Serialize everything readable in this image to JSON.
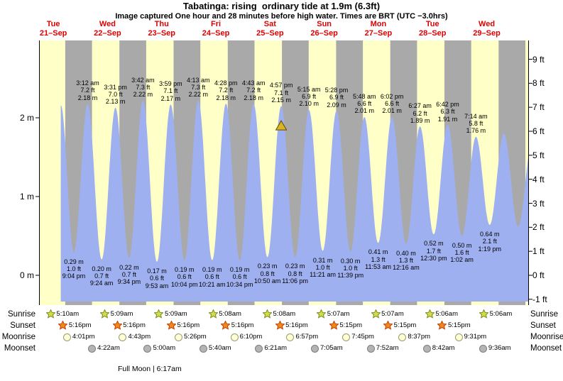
{
  "title": "Tabatinga: rising  ordinary tide at 1.9m (6.3ft)",
  "subtitle": "Image captured One hour and 28 minutes before high water. Times are BRT (UTC −3.0hrs)",
  "days": [
    {
      "weekday": "Tue",
      "date": "21–Sep"
    },
    {
      "weekday": "Wed",
      "date": "22–Sep"
    },
    {
      "weekday": "Thu",
      "date": "23–Sep"
    },
    {
      "weekday": "Fri",
      "date": "24–Sep"
    },
    {
      "weekday": "Sat",
      "date": "25–Sep"
    },
    {
      "weekday": "Sun",
      "date": "26–Sep"
    },
    {
      "weekday": "Mon",
      "date": "27–Sep"
    },
    {
      "weekday": "Tue",
      "date": "28–Sep"
    },
    {
      "weekday": "Wed",
      "date": "29–Sep"
    }
  ],
  "axis": {
    "left_labels": [
      "2 m",
      "1 m",
      "0 m"
    ],
    "right_labels": [
      "9 ft",
      "8 ft",
      "7 ft",
      "6 ft",
      "5 ft",
      "4 ft",
      "3 ft",
      "2 ft",
      "1 ft",
      "0 ft",
      "-1 ft"
    ]
  },
  "chart_data": {
    "type": "area",
    "series_name": "Tide height",
    "x_axis": "Time (BRT), Tue 21-Sep through Wed 29-Sep",
    "y_axis_left": "meters",
    "y_axis_right": "feet",
    "ylim_m": [
      -0.38,
      2.98
    ],
    "current_level_m": 1.9,
    "extremes": [
      {
        "kind": "high",
        "t": 15.3,
        "height_m": 2.16
      },
      {
        "kind": "low",
        "day": 0,
        "time": "9:04 pm",
        "height_m": 0.29,
        "m": "0.29 m",
        "ft": "1.0 ft"
      },
      {
        "kind": "high",
        "day": 1,
        "time": "3:12 am",
        "height_m": 2.18,
        "ft": "7.2 ft",
        "m": "2.18 m"
      },
      {
        "kind": "low",
        "day": 1,
        "time": "9:24 am",
        "height_m": 0.2,
        "m": "0.20 m",
        "ft": "0.7 ft"
      },
      {
        "kind": "high",
        "day": 1,
        "time": "3:31 pm",
        "height_m": 2.13,
        "ft": "7.0 ft",
        "m": "2.13 m"
      },
      {
        "kind": "low",
        "day": 1,
        "time": "9:34 pm",
        "height_m": 0.22,
        "m": "0.22 m",
        "ft": "0.7 ft"
      },
      {
        "kind": "high",
        "day": 2,
        "time": "3:42 am",
        "height_m": 2.22,
        "ft": "7.3 ft",
        "m": "2.22 m"
      },
      {
        "kind": "low",
        "day": 2,
        "time": "9:53 am",
        "height_m": 0.17,
        "m": "0.17 m",
        "ft": "0.6 ft"
      },
      {
        "kind": "high",
        "day": 2,
        "time": "3:59 pm",
        "height_m": 2.17,
        "ft": "7.1 ft",
        "m": "2.17 m"
      },
      {
        "kind": "low",
        "day": 2,
        "time": "10:04 pm",
        "height_m": 0.19,
        "m": "0.19 m",
        "ft": "0.6 ft"
      },
      {
        "kind": "high",
        "day": 3,
        "time": "4:13 am",
        "height_m": 2.22,
        "ft": "7.3 ft",
        "m": "2.22 m"
      },
      {
        "kind": "low",
        "day": 3,
        "time": "10:21 am",
        "height_m": 0.19,
        "m": "0.19 m",
        "ft": "0.6 ft"
      },
      {
        "kind": "high",
        "day": 3,
        "time": "4:28 pm",
        "height_m": 2.18,
        "ft": "7.2 ft",
        "m": "2.18 m"
      },
      {
        "kind": "low",
        "day": 3,
        "time": "10:34 pm",
        "height_m": 0.19,
        "m": "0.19 m",
        "ft": "0.6 ft"
      },
      {
        "kind": "high",
        "day": 4,
        "time": "4:43 am",
        "height_m": 2.18,
        "ft": "7.2 ft",
        "m": "2.18 m"
      },
      {
        "kind": "low",
        "day": 4,
        "time": "10:50 am",
        "height_m": 0.23,
        "m": "0.23 m",
        "ft": "0.8 ft"
      },
      {
        "kind": "high",
        "day": 4,
        "time": "4:57 pm",
        "height_m": 2.15,
        "ft": "7.1 ft",
        "m": "2.15 m",
        "marker": true
      },
      {
        "kind": "low",
        "day": 4,
        "time": "11:06 pm",
        "height_m": 0.23,
        "m": "0.23 m",
        "ft": "0.8 ft"
      },
      {
        "kind": "high",
        "day": 5,
        "time": "5:15 am",
        "height_m": 2.1,
        "ft": "6.9 ft",
        "m": "2.10 m"
      },
      {
        "kind": "low",
        "day": 5,
        "time": "11:21 am",
        "height_m": 0.31,
        "m": "0.31 m",
        "ft": "1.0 ft"
      },
      {
        "kind": "high",
        "day": 5,
        "time": "5:28 pm",
        "height_m": 2.09,
        "ft": "6.9 ft",
        "m": "2.09 m"
      },
      {
        "kind": "low",
        "day": 5,
        "time": "11:39 pm",
        "height_m": 0.3,
        "m": "0.30 m",
        "ft": "1.0 ft"
      },
      {
        "kind": "high",
        "day": 6,
        "time": "5:48 am",
        "height_m": 2.01,
        "ft": "6.6 ft",
        "m": "2.01 m"
      },
      {
        "kind": "low",
        "day": 6,
        "time": "11:53 am",
        "height_m": 0.41,
        "m": "0.41 m",
        "ft": "1.3 ft"
      },
      {
        "kind": "high",
        "day": 6,
        "time": "6:02 pm",
        "height_m": 2.01,
        "ft": "6.6 ft",
        "m": "2.01 m"
      },
      {
        "kind": "low",
        "day": 7,
        "time": "12:16 am",
        "height_m": 0.4,
        "m": "0.40 m",
        "ft": "1.3 ft"
      },
      {
        "kind": "high",
        "day": 7,
        "time": "6:27 am",
        "height_m": 1.89,
        "ft": "6.2 ft",
        "m": "1.89 m"
      },
      {
        "kind": "low",
        "day": 7,
        "time": "12:30 pm",
        "height_m": 0.52,
        "m": "0.52 m",
        "ft": "1.7 ft"
      },
      {
        "kind": "high",
        "day": 7,
        "time": "6:42 pm",
        "height_m": 1.91,
        "ft": "6.3 ft",
        "m": "1.91 m"
      },
      {
        "kind": "low",
        "day": 8,
        "time": "1:02 am",
        "height_m": 0.5,
        "m": "0.50 m",
        "ft": "1.6 ft"
      },
      {
        "kind": "high",
        "day": 8,
        "time": "7:14 am",
        "height_m": 1.76,
        "ft": "5.8 ft",
        "m": "1.76 m"
      },
      {
        "kind": "low",
        "day": 8,
        "time": "1:19 pm",
        "height_m": 0.64,
        "m": "0.64 m",
        "ft": "2.1 ft"
      },
      {
        "kind": "high",
        "t": 211.6,
        "height_m": 1.8
      },
      {
        "kind": "low",
        "t": 217.9,
        "height_m": 0.62
      },
      {
        "kind": "high",
        "t": 224.2,
        "height_m": 1.7
      }
    ]
  },
  "astro": {
    "rows": [
      {
        "name": "Sunrise",
        "icon": "sunrise-star-icon",
        "events": [
          {
            "day": 0,
            "time": "5:10am"
          },
          {
            "day": 1,
            "time": "5:09am"
          },
          {
            "day": 2,
            "time": "5:09am"
          },
          {
            "day": 3,
            "time": "5:08am"
          },
          {
            "day": 4,
            "time": "5:08am"
          },
          {
            "day": 5,
            "time": "5:07am"
          },
          {
            "day": 6,
            "time": "5:07am"
          },
          {
            "day": 7,
            "time": "5:06am"
          },
          {
            "day": 8,
            "time": "5:06am"
          }
        ]
      },
      {
        "name": "Sunset",
        "icon": "sunset-star-icon",
        "events": [
          {
            "day": 0,
            "time": "5:16pm"
          },
          {
            "day": 1,
            "time": "5:16pm"
          },
          {
            "day": 2,
            "time": "5:16pm"
          },
          {
            "day": 3,
            "time": "5:16pm"
          },
          {
            "day": 4,
            "time": "5:16pm"
          },
          {
            "day": 5,
            "time": "5:15pm"
          },
          {
            "day": 6,
            "time": "5:15pm"
          },
          {
            "day": 7,
            "time": "5:15pm"
          }
        ]
      },
      {
        "name": "Moonrise",
        "icon": "moonrise-icon",
        "events": [
          {
            "day": 0,
            "time": "4:01pm"
          },
          {
            "day": 1,
            "time": "4:43pm"
          },
          {
            "day": 2,
            "time": "5:26pm"
          },
          {
            "day": 3,
            "time": "6:10pm"
          },
          {
            "day": 4,
            "time": "6:57pm"
          },
          {
            "day": 5,
            "time": "7:45pm"
          },
          {
            "day": 6,
            "time": "8:37pm"
          },
          {
            "day": 7,
            "time": "9:31pm"
          }
        ]
      },
      {
        "name": "Moonset",
        "icon": "moonset-icon",
        "events": [
          {
            "day": 1,
            "time": "4:22am"
          },
          {
            "day": 2,
            "time": "5:00am"
          },
          {
            "day": 3,
            "time": "5:40am"
          },
          {
            "day": 4,
            "time": "6:21am"
          },
          {
            "day": 5,
            "time": "7:05am"
          },
          {
            "day": 6,
            "time": "7:52am"
          },
          {
            "day": 7,
            "time": "8:42am"
          },
          {
            "day": 8,
            "time": "9:36am"
          }
        ]
      }
    ],
    "note": "Full Moon | 6:17am"
  },
  "colors": {
    "day_band": "#ffffc8",
    "night_band": "#a9a9a9",
    "tide_fill": "#9fb0f0",
    "day_label": "#dd0000",
    "axis_line": "#000000",
    "marker_fill": "#d9b520",
    "marker_stroke": "#5f4a00",
    "sunrise_star_fill": "#d8d84a",
    "sunrise_star_stroke": "#6f8f1f",
    "sunset_star_fill": "#ef8a1a",
    "sunset_star_stroke": "#c23a00",
    "moonrise_fill": "#ffffd8",
    "moonrise_stroke": "#9a9a6a",
    "moonset_fill": "#b4b4b4",
    "moonset_stroke": "#7d7d7d"
  }
}
